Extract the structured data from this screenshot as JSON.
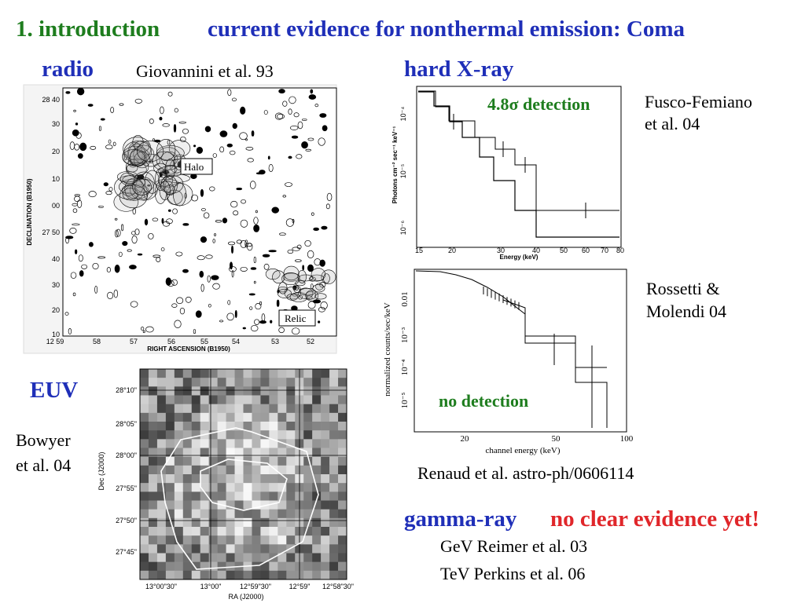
{
  "header": {
    "number": "1. introduction",
    "title": "current evidence for nonthermal emission: Coma"
  },
  "radio": {
    "label": "radio",
    "citation": "Giovannini et al. 93",
    "figure": {
      "x_label": "RIGHT ASCENSION (B1950)",
      "y_label": "DECLINATION (B1950)",
      "x_ticks": [
        "12 59",
        "58",
        "57",
        "56",
        "55",
        "54",
        "53",
        "52"
      ],
      "y_ticks": [
        "28 40",
        "30",
        "20",
        "10",
        "00",
        "27 50",
        "40",
        "30",
        "20",
        "10"
      ],
      "annotations": [
        "Halo",
        "Relic"
      ]
    }
  },
  "hard_xray": {
    "label": "hard X-ray",
    "top": {
      "annotation": "4.8σ detection",
      "citation": [
        "Fusco-Femiano",
        "et al. 04"
      ],
      "figure": {
        "x_label": "Energy (keV)",
        "y_label": "Photons cm⁻² sec⁻¹ keV⁻¹",
        "x_ticks": [
          "15",
          "20",
          "30",
          "40",
          "50",
          "60",
          "70",
          "80"
        ],
        "y_ticks": [
          "10⁻⁴",
          "10⁻⁵",
          "10⁻⁶"
        ]
      }
    },
    "bottom": {
      "annotation": "no detection",
      "citation": [
        "Rossetti &",
        "Molendi 04"
      ],
      "figure": {
        "x_label": "channel energy (keV)",
        "y_label": "normalized counts/sec/keV",
        "x_ticks": [
          "20",
          "50",
          "100"
        ],
        "y_ticks": [
          "0.01",
          "10⁻³",
          "10⁻⁴",
          "10⁻⁵"
        ]
      }
    },
    "citation": "Renaud et al. astro-ph/0606114"
  },
  "euv": {
    "label": "EUV",
    "citation": [
      "Bowyer",
      "et al. 04"
    ],
    "figure": {
      "x_label": "RA (J2000)",
      "y_label": "Dec (J2000)",
      "x_ticks": [
        "13°00\"30\"",
        "13°00\"",
        "12°59\"30\"",
        "12°59\"",
        "12°58\"30\""
      ],
      "y_ticks": [
        "28°10\"",
        "28°05\"",
        "28°00\"",
        "27°55\"",
        "27°50\"",
        "27°45\""
      ]
    }
  },
  "gamma": {
    "label": "gamma-ray",
    "status": "no clear evidence yet!",
    "lines": [
      "GeV Reimer et al. 03",
      "TeV Perkins et al. 06"
    ]
  }
}
